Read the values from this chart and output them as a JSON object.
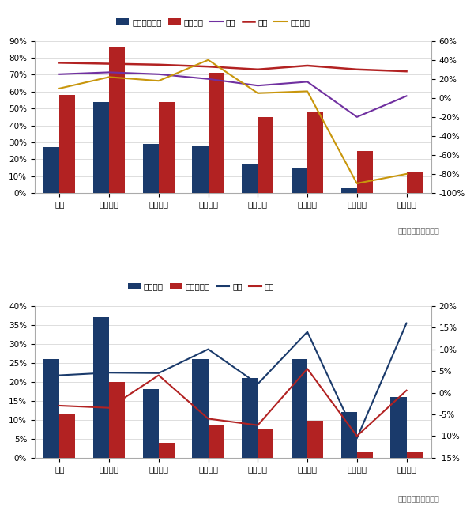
{
  "chart1": {
    "categories": [
      "全国",
      "华南区域",
      "西北区域",
      "华中区域",
      "华东区域",
      "西南区域",
      "华北区域",
      "东北区域"
    ],
    "bar1": [
      0.27,
      0.54,
      0.29,
      0.28,
      0.17,
      0.15,
      0.03,
      0.0
    ],
    "bar2": [
      0.58,
      0.86,
      0.54,
      0.71,
      0.45,
      0.48,
      0.25,
      0.12
    ],
    "line_tongbi": [
      0.25,
      0.27,
      0.25,
      0.2,
      0.13,
      0.17,
      -0.2,
      0.02
    ],
    "line_huanbi": [
      0.37,
      0.36,
      0.35,
      0.33,
      0.3,
      0.34,
      0.3,
      0.28
    ],
    "line_yujitongbi": [
      0.1,
      0.22,
      0.18,
      0.4,
      0.05,
      0.07,
      -0.9,
      -0.8
    ],
    "bar1_color": "#1a3a6b",
    "bar2_color": "#b22222",
    "line_tongbi_color": "#7030a0",
    "line_huanbi_color": "#b22222",
    "line_yujitongbi_color": "#c8960c",
    "ylim_left": [
      0.0,
      0.9
    ],
    "ylim_right": [
      -1.0,
      0.6
    ],
    "yticks_left": [
      0.0,
      0.1,
      0.2,
      0.3,
      0.4,
      0.5,
      0.6,
      0.7,
      0.8,
      0.9
    ],
    "yticks_right": [
      -1.0,
      -0.8,
      -0.6,
      -0.4,
      -0.2,
      0.0,
      0.2,
      0.4,
      0.6
    ],
    "legend_labels": [
      "工地开复工率",
      "预计下周",
      "同比",
      "环比",
      "预计同比"
    ],
    "source": "数据来源：百年建筑",
    "bar_width": 0.32
  },
  "chart2": {
    "categories": [
      "全国",
      "华南区域",
      "西北区域",
      "华中区域",
      "华东区域",
      "西南区域",
      "华北区域",
      "东北区域"
    ],
    "bar1": [
      0.26,
      0.37,
      0.18,
      0.26,
      0.21,
      0.26,
      0.12,
      0.16
    ],
    "bar2": [
      0.115,
      0.2,
      0.04,
      0.085,
      0.075,
      0.097,
      0.015,
      0.015
    ],
    "line_tongbi": [
      0.04,
      0.046,
      0.045,
      0.1,
      0.02,
      0.14,
      -0.105,
      0.16
    ],
    "line_huanbi": [
      -0.03,
      -0.035,
      0.04,
      -0.06,
      -0.075,
      0.055,
      -0.1,
      0.005
    ],
    "bar1_color": "#1a3a6b",
    "bar2_color": "#b22222",
    "line_tongbi_color": "#1a3a6b",
    "line_huanbi_color": "#b22222",
    "ylim_left": [
      0.0,
      0.4
    ],
    "ylim_right": [
      -0.15,
      0.2
    ],
    "yticks_left": [
      0.0,
      0.05,
      0.1,
      0.15,
      0.2,
      0.25,
      0.3,
      0.35,
      0.4
    ],
    "yticks_right": [
      -0.15,
      -0.1,
      -0.05,
      0.0,
      0.05,
      0.1,
      0.15,
      0.2
    ],
    "legend_labels": [
      "劳务到位",
      "劳务上岗率",
      "同比",
      "同比"
    ],
    "source": "数据来源：百年建筑",
    "bar_width": 0.32
  },
  "bg_color": "#ffffff",
  "grid_color": "#d8d8d8"
}
